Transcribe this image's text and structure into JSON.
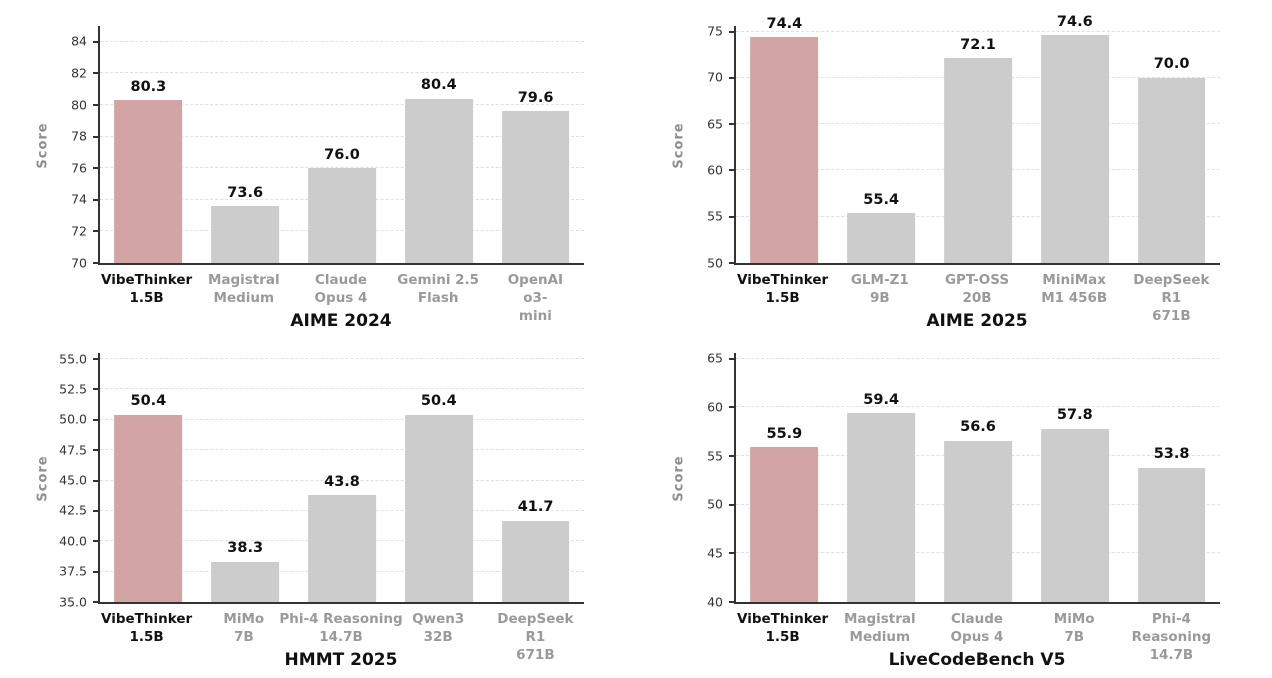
{
  "figure": {
    "ylabel": "Score",
    "colors": {
      "background": "#ffffff",
      "highlight_bar": "#d2a4a4",
      "default_bar": "#cccccc",
      "gridline": "#e0e0e0",
      "spine": "#333333",
      "tick_label": "#333333",
      "axis_label": "#8e8e8e",
      "category_highlight": "#111111",
      "category_muted": "#9a9a9a",
      "value_label": "#111111",
      "title": "#111111"
    }
  },
  "chart_data": [
    {
      "type": "bar",
      "title": "AIME 2024",
      "ylabel": "Score",
      "categories": [
        "VibeThinker\n1.5B",
        "Magistral\nMedium",
        "Claude\nOpus 4",
        "Gemini 2.5\nFlash",
        "OpenAI\no3-mini"
      ],
      "values": [
        80.3,
        73.6,
        76.0,
        80.4,
        79.6
      ],
      "value_labels": [
        "80.3",
        "73.6",
        "76.0",
        "80.4",
        "79.6"
      ],
      "highlight_index": 0,
      "ylim": [
        70,
        85
      ],
      "ytick_values": [
        70,
        72,
        74,
        76,
        78,
        80,
        82,
        84
      ],
      "ytick_labels": [
        "70",
        "72",
        "74",
        "76",
        "78",
        "80",
        "82",
        "84"
      ],
      "grid": "horizontal-dashed",
      "legend": "none"
    },
    {
      "type": "bar",
      "title": "AIME 2025",
      "ylabel": "Score",
      "categories": [
        "VibeThinker\n1.5B",
        "GLM-Z1\n9B",
        "GPT-OSS\n20B",
        "MiniMax\nM1 456B",
        "DeepSeek R1\n671B"
      ],
      "values": [
        74.4,
        55.4,
        72.1,
        74.6,
        70.0
      ],
      "value_labels": [
        "74.4",
        "55.4",
        "72.1",
        "74.6",
        "70.0"
      ],
      "highlight_index": 0,
      "ylim": [
        50,
        75.6
      ],
      "ytick_values": [
        50,
        55,
        60,
        65,
        70,
        75
      ],
      "ytick_labels": [
        "50",
        "55",
        "60",
        "65",
        "70",
        "75"
      ],
      "grid": "horizontal-dashed",
      "legend": "none"
    },
    {
      "type": "bar",
      "title": "HMMT 2025",
      "ylabel": "Score",
      "categories": [
        "VibeThinker\n1.5B",
        "MiMo\n7B",
        "Phi-4 Reasoning\n14.7B",
        "Qwen3\n32B",
        "DeepSeek R1\n671B"
      ],
      "values": [
        50.4,
        38.3,
        43.8,
        50.4,
        41.7
      ],
      "value_labels": [
        "50.4",
        "38.3",
        "43.8",
        "50.4",
        "41.7"
      ],
      "highlight_index": 0,
      "ylim": [
        35,
        55.5
      ],
      "ytick_values": [
        35,
        37.5,
        40,
        42.5,
        45,
        47.5,
        50,
        52.5,
        55
      ],
      "ytick_labels": [
        "35.0",
        "37.5",
        "40.0",
        "42.5",
        "45.0",
        "47.5",
        "50.0",
        "52.5",
        "55.0"
      ],
      "grid": "horizontal-dashed",
      "legend": "none"
    },
    {
      "type": "bar",
      "title": "LiveCodeBench V5",
      "ylabel": "Score",
      "categories": [
        "VibeThinker\n1.5B",
        "Magistral\nMedium",
        "Claude\nOpus 4",
        "MiMo\n7B",
        "Phi-4 Reasoning\n14.7B"
      ],
      "values": [
        55.9,
        59.4,
        56.6,
        57.8,
        53.8
      ],
      "value_labels": [
        "55.9",
        "59.4",
        "56.6",
        "57.8",
        "53.8"
      ],
      "highlight_index": 0,
      "ylim": [
        40,
        65.6
      ],
      "ytick_values": [
        40,
        45,
        50,
        55,
        60,
        65
      ],
      "ytick_labels": [
        "40",
        "45",
        "50",
        "55",
        "60",
        "65"
      ],
      "grid": "horizontal-dashed",
      "legend": "none"
    }
  ]
}
